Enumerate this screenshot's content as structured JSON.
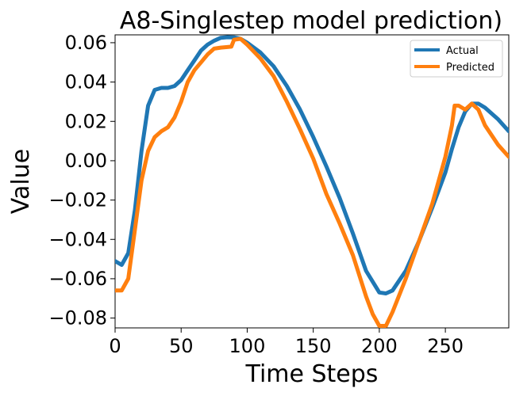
{
  "chart_data": {
    "type": "line",
    "title": "A8-Singlestep model prediction)",
    "xlabel": "Time Steps",
    "ylabel": "Value",
    "xlim": [
      0,
      298
    ],
    "ylim": [
      -0.085,
      0.064
    ],
    "xticks": [
      0,
      50,
      100,
      150,
      200,
      250
    ],
    "yticks": [
      -0.08,
      -0.06,
      -0.04,
      -0.02,
      0.0,
      0.02,
      0.04,
      0.06
    ],
    "xtick_labels": [
      "0",
      "50",
      "100",
      "150",
      "200",
      "250"
    ],
    "ytick_labels": [
      "−0.08",
      "−0.06",
      "−0.04",
      "−0.02",
      "0.00",
      "0.02",
      "0.04",
      "0.06"
    ],
    "grid": false,
    "legend_position": "top-right",
    "series": [
      {
        "name": "Actual",
        "color": "#1f77b4",
        "x": [
          0,
          5,
          10,
          15,
          20,
          25,
          30,
          35,
          40,
          45,
          50,
          55,
          60,
          65,
          70,
          75,
          80,
          85,
          90,
          95,
          100,
          110,
          120,
          130,
          140,
          150,
          160,
          170,
          180,
          190,
          200,
          205,
          210,
          220,
          230,
          240,
          250,
          255,
          260,
          265,
          270,
          275,
          280,
          290,
          298
        ],
        "y": [
          -0.051,
          -0.053,
          -0.047,
          -0.025,
          0.005,
          0.028,
          0.036,
          0.037,
          0.037,
          0.038,
          0.041,
          0.046,
          0.051,
          0.056,
          0.059,
          0.061,
          0.0625,
          0.0628,
          0.0627,
          0.062,
          0.06,
          0.055,
          0.048,
          0.038,
          0.026,
          0.012,
          -0.003,
          -0.019,
          -0.037,
          -0.056,
          -0.067,
          -0.0675,
          -0.066,
          -0.056,
          -0.041,
          -0.024,
          -0.006,
          0.006,
          0.017,
          0.025,
          0.029,
          0.029,
          0.027,
          0.021,
          0.015
        ]
      },
      {
        "name": "Predicted",
        "color": "#ff7f0e",
        "x": [
          0,
          5,
          10,
          15,
          20,
          25,
          30,
          35,
          40,
          45,
          50,
          55,
          60,
          65,
          70,
          75,
          80,
          85,
          88,
          90,
          95,
          100,
          110,
          120,
          130,
          140,
          150,
          160,
          170,
          180,
          190,
          195,
          200,
          205,
          210,
          220,
          230,
          240,
          250,
          255,
          257,
          260,
          265,
          270,
          275,
          280,
          290,
          298
        ],
        "y": [
          -0.066,
          -0.066,
          -0.06,
          -0.035,
          -0.01,
          0.005,
          0.012,
          0.015,
          0.017,
          0.022,
          0.03,
          0.04,
          0.046,
          0.05,
          0.054,
          0.057,
          0.0575,
          0.0578,
          0.058,
          0.0615,
          0.062,
          0.059,
          0.052,
          0.043,
          0.03,
          0.016,
          0.001,
          -0.017,
          -0.032,
          -0.048,
          -0.069,
          -0.078,
          -0.084,
          -0.084,
          -0.077,
          -0.06,
          -0.041,
          -0.022,
          0.002,
          0.018,
          0.028,
          0.028,
          0.026,
          0.029,
          0.026,
          0.018,
          0.008,
          0.002
        ]
      }
    ]
  }
}
